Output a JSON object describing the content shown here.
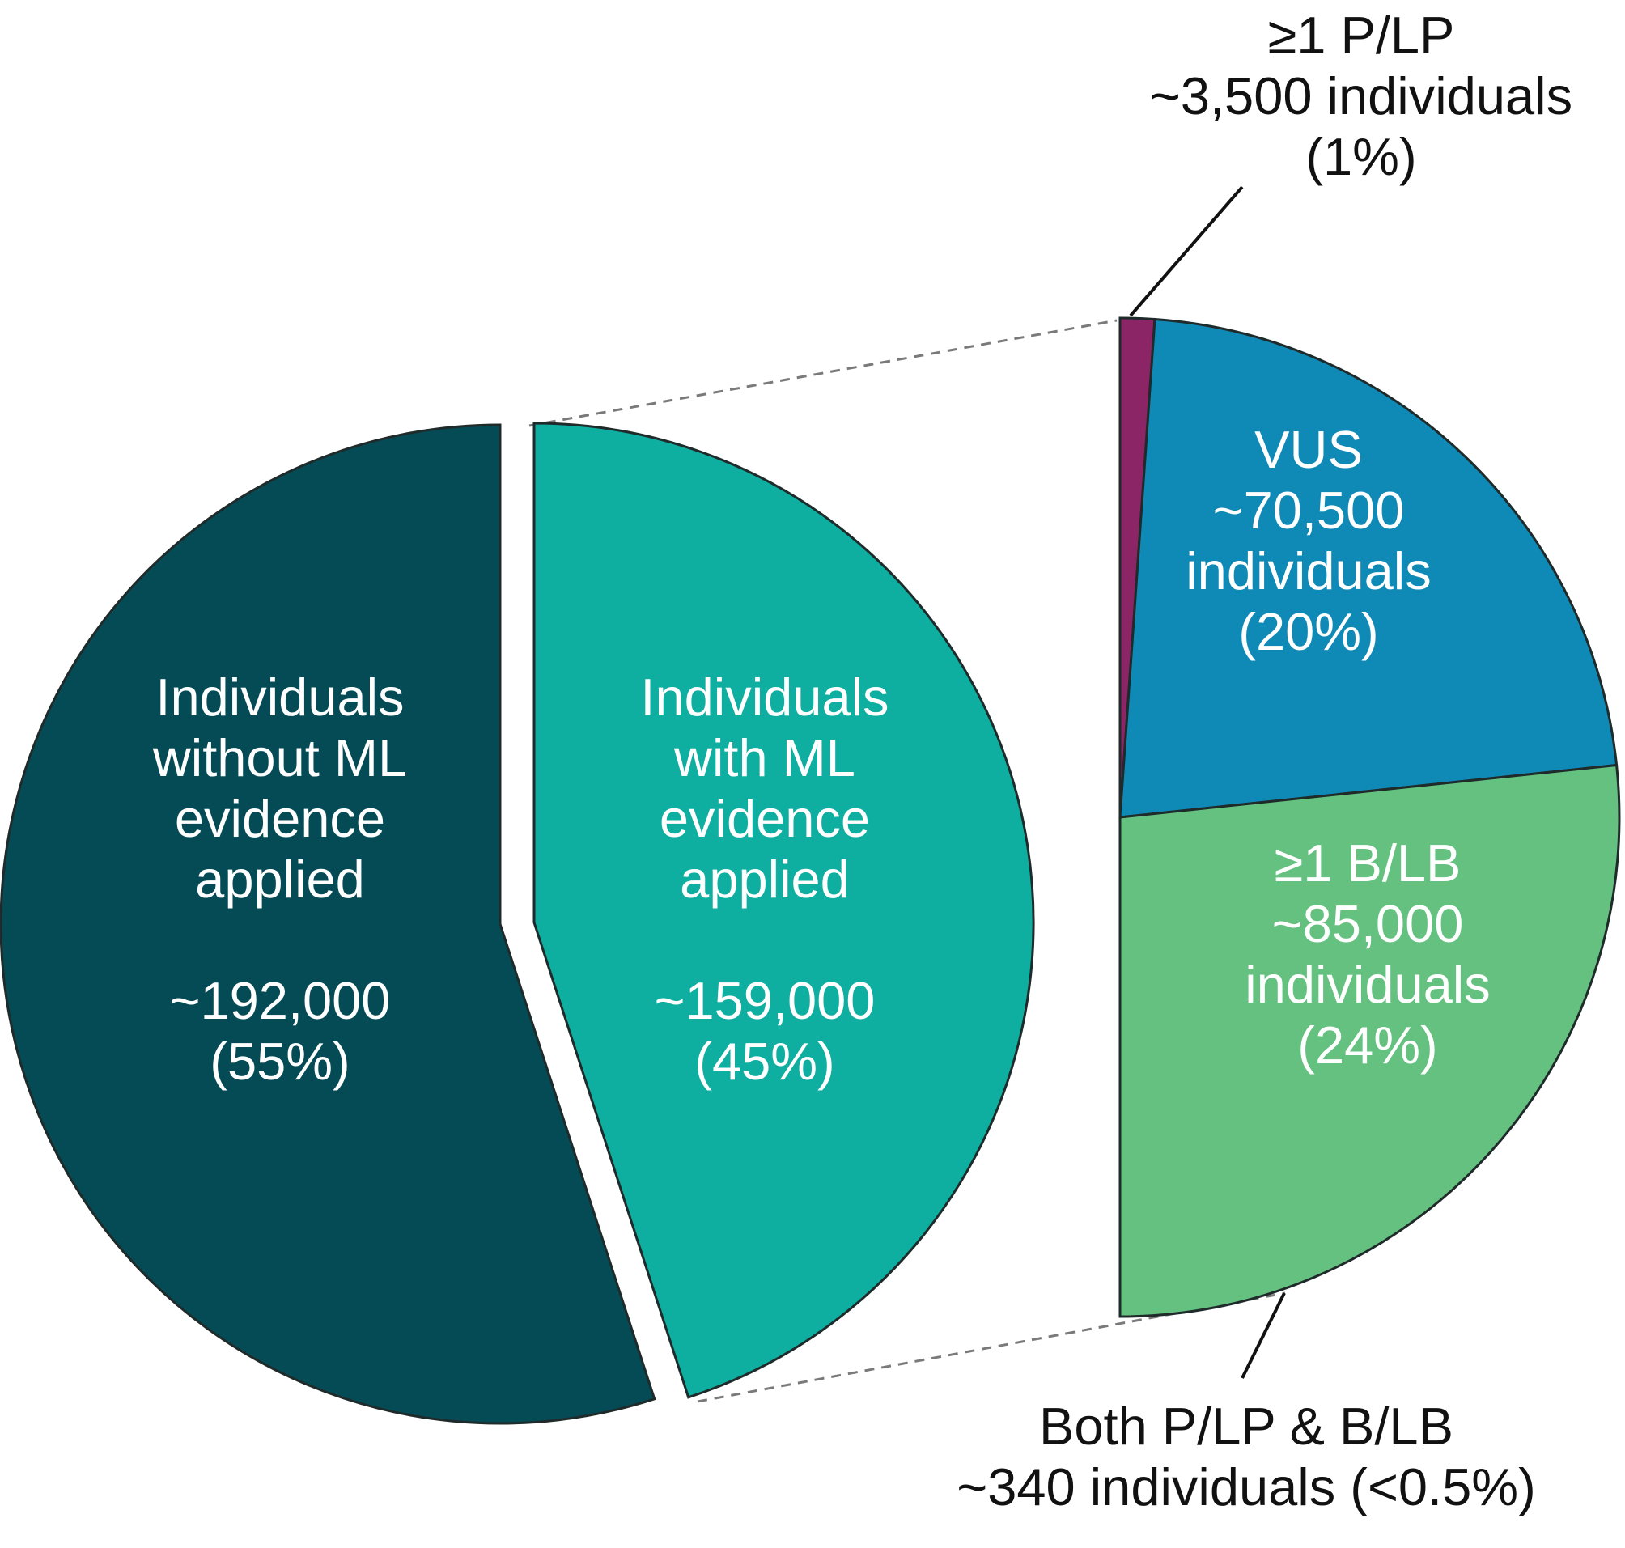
{
  "colors": {
    "without_ml": "#054b55",
    "with_ml": "#0eaea0",
    "plp": "#8b2565",
    "vus": "#0f89b6",
    "blb": "#65c17f",
    "text_light": "#ffffff",
    "text_dark": "#111111",
    "connector": "#7a7a7a"
  },
  "chart_data": [
    {
      "type": "pie",
      "slices": [
        {
          "key": "without_ml",
          "value": 55,
          "count": 192000,
          "label_lines": [
            "Individuals",
            "without ML",
            "evidence",
            "applied",
            "",
            "~192,000",
            "(55%)"
          ]
        },
        {
          "key": "with_ml",
          "value": 45,
          "count": 159000,
          "label_lines": [
            "Individuals",
            "with ML",
            "evidence",
            "applied",
            "",
            "~159,000",
            "(45%)"
          ]
        }
      ]
    },
    {
      "type": "pie",
      "subset_of": "with_ml",
      "slices": [
        {
          "key": "plp",
          "value": 1,
          "count": 3500,
          "label_lines": [
            "≥1 P/LP",
            "~3,500 individuals",
            "(1%)"
          ]
        },
        {
          "key": "vus",
          "value": 20,
          "count": 70500,
          "label_lines": [
            "VUS",
            "~70,500",
            "individuals",
            "(20%)"
          ]
        },
        {
          "key": "blb",
          "value": 24,
          "count": 85000,
          "label_lines": [
            "≥1 B/LB",
            "~85,000",
            "individuals",
            "(24%)"
          ]
        },
        {
          "key": "both",
          "value": 0.1,
          "count": 340,
          "label_lines": [
            "Both P/LP & B/LB",
            "~340 individuals (<0.5%)"
          ]
        }
      ]
    }
  ]
}
